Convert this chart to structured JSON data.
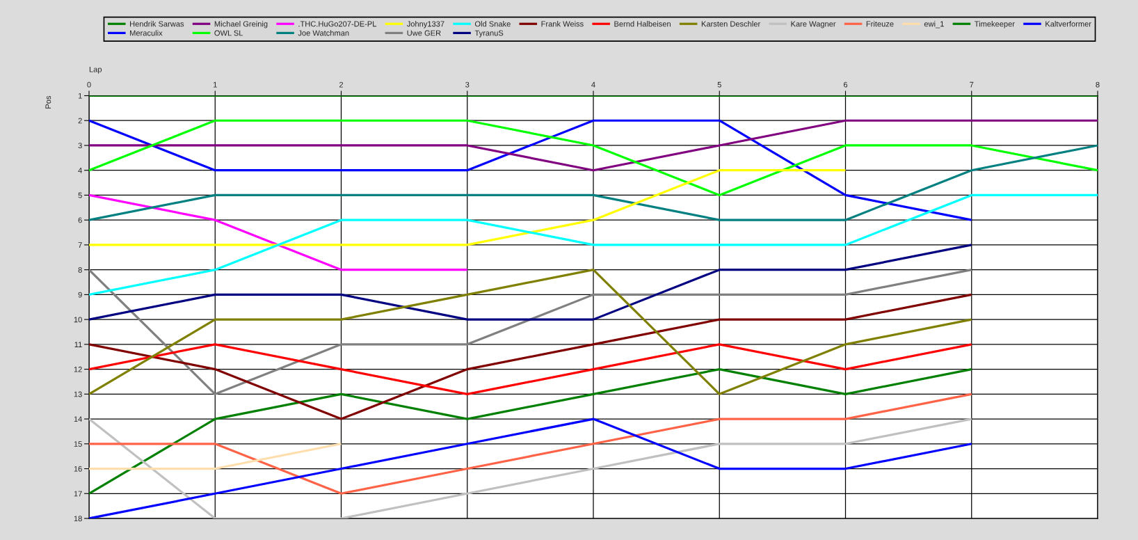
{
  "chart_data": {
    "type": "line",
    "xlabel": "Lap",
    "ylabel": "Pos",
    "x": [
      0,
      1,
      2,
      3,
      4,
      5,
      6,
      7,
      8
    ],
    "xlim": [
      0,
      8
    ],
    "xticks": [
      0,
      1,
      2,
      3,
      4,
      5,
      6,
      7,
      8
    ],
    "ylim": [
      18,
      1
    ],
    "yticks": [
      1,
      2,
      3,
      4,
      5,
      6,
      7,
      8,
      9,
      10,
      11,
      12,
      13,
      14,
      15,
      16,
      17,
      18
    ],
    "grid": true,
    "legend": "top",
    "marker": "none",
    "line_style": "solid",
    "series": [
      {
        "name": "Hendrik Sarwas",
        "color": "#008000",
        "values": [
          17,
          14,
          13,
          14,
          13,
          12,
          13,
          12,
          null
        ]
      },
      {
        "name": "Meraculix",
        "color": "#0000ff",
        "values": [
          2,
          4,
          4,
          4,
          2,
          2,
          5,
          6,
          null
        ]
      },
      {
        "name": "Michael Greinig",
        "color": "#800080",
        "values": [
          3,
          3,
          3,
          3,
          4,
          3,
          2,
          2,
          2
        ]
      },
      {
        "name": "OWL SL",
        "color": "#00ff00",
        "values": [
          4,
          2,
          2,
          2,
          3,
          5,
          3,
          3,
          4
        ]
      },
      {
        "name": ".THC.HuGo207-DE-PL",
        "color": "#ff00ff",
        "values": [
          5,
          6,
          8,
          8,
          null,
          null,
          null,
          null,
          null
        ]
      },
      {
        "name": "Joe Watchman",
        "color": "#008080",
        "values": [
          6,
          5,
          5,
          5,
          5,
          6,
          6,
          4,
          3
        ]
      },
      {
        "name": "Johny1337",
        "color": "#ffff00",
        "values": [
          7,
          7,
          7,
          7,
          6,
          4,
          4,
          null,
          null
        ]
      },
      {
        "name": "Uwe GER",
        "color": "#808080",
        "values": [
          8,
          13,
          11,
          11,
          9,
          9,
          9,
          8,
          null
        ]
      },
      {
        "name": "Old Snake",
        "color": "#00ffff",
        "values": [
          9,
          8,
          6,
          6,
          7,
          7,
          7,
          5,
          5
        ]
      },
      {
        "name": "TyranuS",
        "color": "#000080",
        "values": [
          10,
          9,
          9,
          10,
          10,
          8,
          8,
          7,
          null
        ]
      },
      {
        "name": "Frank Weiss",
        "color": "#800000",
        "values": [
          11,
          12,
          14,
          12,
          11,
          10,
          10,
          9,
          null
        ]
      },
      {
        "name": "Bernd Halbeisen",
        "color": "#ff0000",
        "values": [
          12,
          11,
          12,
          13,
          12,
          11,
          12,
          11,
          null
        ]
      },
      {
        "name": "Karsten Deschler",
        "color": "#808000",
        "values": [
          13,
          10,
          10,
          9,
          8,
          13,
          11,
          10,
          null
        ]
      },
      {
        "name": "Kare Wagner",
        "color": "#c0c0c0",
        "values": [
          14,
          18,
          18,
          17,
          16,
          15,
          15,
          14,
          null
        ]
      },
      {
        "name": "Friteuze",
        "color": "#ff6347",
        "values": [
          15,
          15,
          17,
          16,
          15,
          14,
          14,
          13,
          null
        ]
      },
      {
        "name": "ewi_1",
        "color": "#ffdead",
        "values": [
          16,
          16,
          15,
          null,
          null,
          null,
          null,
          null,
          null
        ]
      },
      {
        "name": "Timekeeper",
        "color": "#008000",
        "values": [
          1,
          1,
          1,
          1,
          1,
          1,
          1,
          1,
          1
        ]
      },
      {
        "name": "Kaltverformer",
        "color": "#0000ff",
        "values": [
          18,
          17,
          16,
          15,
          14,
          16,
          16,
          15,
          null
        ]
      }
    ]
  }
}
